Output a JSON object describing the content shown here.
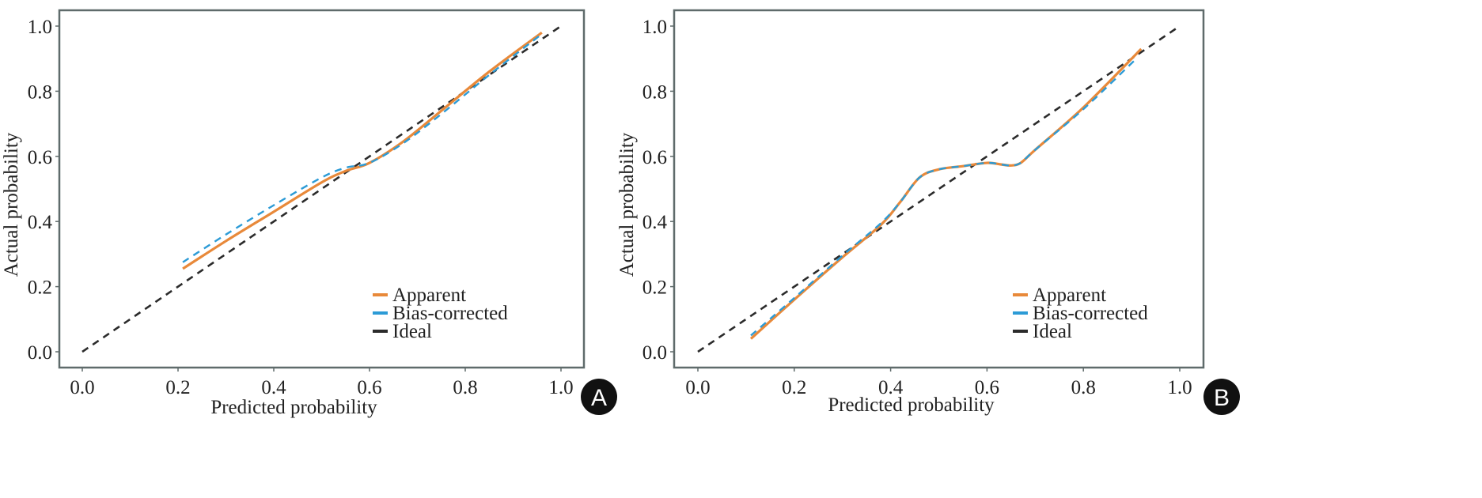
{
  "chart_data": [
    {
      "type": "line",
      "panel_label": "A",
      "title": "",
      "xlabel": "Predicted probability",
      "ylabel": "Actual probability",
      "xlim": [
        -0.05,
        1.05
      ],
      "ylim": [
        -0.05,
        1.05
      ],
      "xticks": [
        "0.0",
        "0.2",
        "0.4",
        "0.6",
        "0.8",
        "1.0"
      ],
      "yticks": [
        "0.0",
        "0.2",
        "0.4",
        "0.6",
        "0.8",
        "1.0"
      ],
      "grid": false,
      "legend_position": "bottom-right",
      "series": [
        {
          "name": "Apparent",
          "color": "#E8893A",
          "style": "solid",
          "x": [
            0.21,
            0.3,
            0.4,
            0.5,
            0.55,
            0.6,
            0.67,
            0.75,
            0.85,
            0.96
          ],
          "y": [
            0.255,
            0.34,
            0.43,
            0.52,
            0.555,
            0.58,
            0.645,
            0.74,
            0.86,
            0.98
          ]
        },
        {
          "name": "Bias-corrected",
          "color": "#2C9BD6",
          "style": "dashed",
          "x": [
            0.21,
            0.3,
            0.4,
            0.5,
            0.55,
            0.6,
            0.67,
            0.75,
            0.85,
            0.955
          ],
          "y": [
            0.275,
            0.36,
            0.45,
            0.535,
            0.565,
            0.58,
            0.64,
            0.73,
            0.85,
            0.97
          ]
        },
        {
          "name": "Ideal",
          "color": "#2B2B2B",
          "style": "dashed",
          "x": [
            0.0,
            1.0
          ],
          "y": [
            0.0,
            1.0
          ]
        }
      ]
    },
    {
      "type": "line",
      "panel_label": "B",
      "title": "",
      "xlabel": "Predicted probability",
      "ylabel": "Actual probability",
      "xlim": [
        -0.05,
        1.05
      ],
      "ylim": [
        -0.05,
        1.05
      ],
      "xticks": [
        "0.0",
        "0.2",
        "0.4",
        "0.6",
        "0.8",
        "1.0"
      ],
      "yticks": [
        "0.0",
        "0.2",
        "0.4",
        "0.6",
        "0.8",
        "1.0"
      ],
      "grid": false,
      "legend_position": "bottom-right",
      "series": [
        {
          "name": "Apparent",
          "color": "#E8893A",
          "style": "solid",
          "x": [
            0.11,
            0.2,
            0.3,
            0.38,
            0.42,
            0.46,
            0.5,
            0.55,
            0.6,
            0.63,
            0.65,
            0.67,
            0.7,
            0.8,
            0.92
          ],
          "y": [
            0.04,
            0.16,
            0.29,
            0.39,
            0.46,
            0.535,
            0.56,
            0.57,
            0.58,
            0.575,
            0.572,
            0.58,
            0.62,
            0.75,
            0.93
          ]
        },
        {
          "name": "Bias-corrected",
          "color": "#2C9BD6",
          "style": "dashed",
          "x": [
            0.11,
            0.2,
            0.3,
            0.38,
            0.42,
            0.46,
            0.5,
            0.55,
            0.6,
            0.63,
            0.65,
            0.67,
            0.7,
            0.8,
            0.91
          ],
          "y": [
            0.05,
            0.165,
            0.295,
            0.395,
            0.46,
            0.535,
            0.56,
            0.57,
            0.58,
            0.575,
            0.572,
            0.58,
            0.62,
            0.745,
            0.9
          ]
        },
        {
          "name": "Ideal",
          "color": "#2B2B2B",
          "style": "dashed",
          "x": [
            0.0,
            1.0
          ],
          "y": [
            0.0,
            1.0
          ]
        }
      ]
    }
  ]
}
